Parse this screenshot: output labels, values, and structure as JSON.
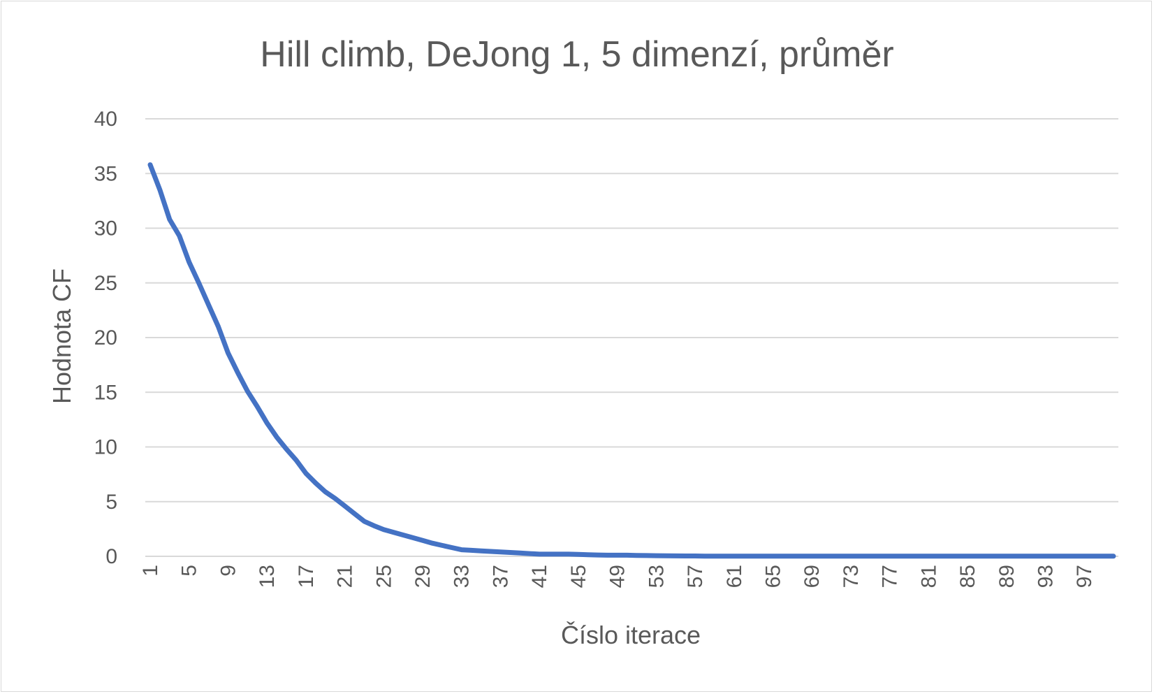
{
  "chart_data": {
    "type": "line",
    "title": "Hill climb, DeJong 1, 5 dimenzí, průměr",
    "xlabel": "Číslo iterace",
    "ylabel": "Hodnota CF",
    "ylim": [
      0,
      40
    ],
    "yticks": [
      "0",
      "5",
      "10",
      "15",
      "20",
      "25",
      "30",
      "35",
      "40"
    ],
    "xticks": [
      "1",
      "5",
      "9",
      "13",
      "17",
      "21",
      "25",
      "29",
      "33",
      "37",
      "41",
      "45",
      "49",
      "53",
      "57",
      "61",
      "65",
      "69",
      "73",
      "77",
      "81",
      "85",
      "89",
      "93",
      "97"
    ],
    "grid": true,
    "legend": "none",
    "color": "#4472c4",
    "x_range": [
      1,
      100
    ],
    "series": [
      {
        "points": [
          [
            1,
            35.8
          ],
          [
            2,
            33.5
          ],
          [
            3,
            30.8
          ],
          [
            4,
            29.3
          ],
          [
            5,
            26.9
          ],
          [
            6,
            25.0
          ],
          [
            7,
            23.0
          ],
          [
            8,
            21.0
          ],
          [
            9,
            18.6
          ],
          [
            10,
            16.8
          ],
          [
            11,
            15.1
          ],
          [
            12,
            13.7
          ],
          [
            13,
            12.2
          ],
          [
            14,
            10.9
          ],
          [
            15,
            9.8
          ],
          [
            16,
            8.8
          ],
          [
            17,
            7.6
          ],
          [
            18,
            6.7
          ],
          [
            19,
            5.9
          ],
          [
            20,
            5.3
          ],
          [
            21,
            4.6
          ],
          [
            22,
            3.9
          ],
          [
            23,
            3.2
          ],
          [
            24,
            2.8
          ],
          [
            25,
            2.45
          ],
          [
            26,
            2.2
          ],
          [
            27,
            1.95
          ],
          [
            28,
            1.7
          ],
          [
            29,
            1.45
          ],
          [
            30,
            1.2
          ],
          [
            31,
            1.0
          ],
          [
            32,
            0.8
          ],
          [
            33,
            0.6
          ],
          [
            34,
            0.55
          ],
          [
            35,
            0.5
          ],
          [
            36,
            0.45
          ],
          [
            37,
            0.4
          ],
          [
            38,
            0.35
          ],
          [
            39,
            0.3
          ],
          [
            40,
            0.25
          ],
          [
            41,
            0.2
          ],
          [
            42,
            0.2
          ],
          [
            43,
            0.2
          ],
          [
            44,
            0.2
          ],
          [
            45,
            0.18
          ],
          [
            46,
            0.15
          ],
          [
            47,
            0.12
          ],
          [
            48,
            0.1
          ],
          [
            49,
            0.1
          ],
          [
            50,
            0.1
          ],
          [
            51,
            0.08
          ],
          [
            52,
            0.07
          ],
          [
            53,
            0.06
          ],
          [
            54,
            0.05
          ],
          [
            55,
            0.04
          ],
          [
            56,
            0.03
          ],
          [
            57,
            0.03
          ],
          [
            58,
            0.02
          ],
          [
            59,
            0.02
          ],
          [
            60,
            0.02
          ],
          [
            65,
            0.01
          ],
          [
            70,
            0.01
          ],
          [
            75,
            0.01
          ],
          [
            80,
            0.01
          ],
          [
            85,
            0.01
          ],
          [
            90,
            0.01
          ],
          [
            95,
            0.01
          ],
          [
            100,
            0.01
          ]
        ]
      }
    ]
  }
}
